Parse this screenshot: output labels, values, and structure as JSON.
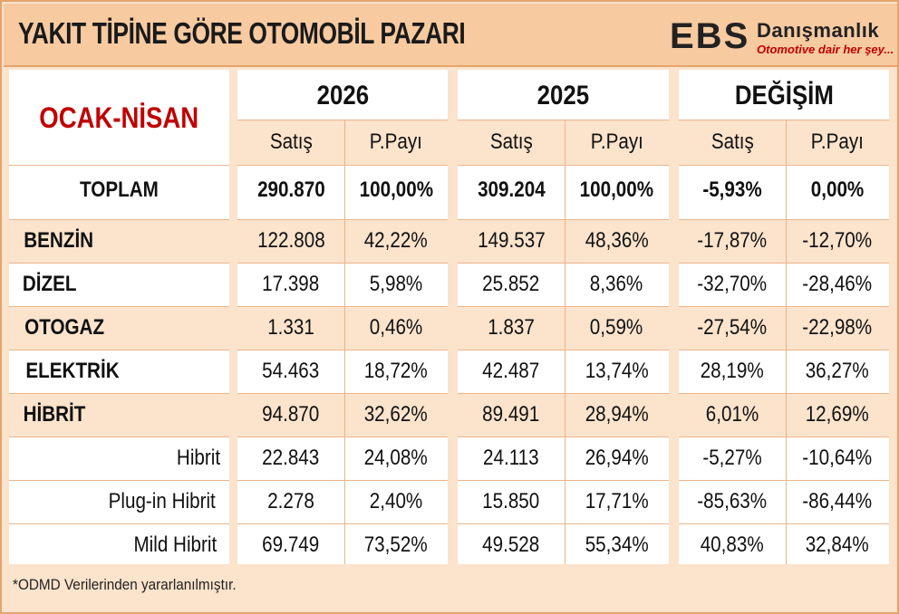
{
  "header": {
    "title": "YAKIT TİPİNE GÖRE OTOMOBİL PAZARI",
    "logo_mark": "EBS",
    "logo_name": "Danışmanlık",
    "logo_tagline": "Otomotive dair her şey..."
  },
  "table": {
    "period": "OCAK-NİSAN",
    "groups": [
      "2026",
      "2025",
      "DEĞİŞİM"
    ],
    "subheaders": [
      "Satış",
      "P.Payı",
      "Satış",
      "P.Payı",
      "Satış",
      "P.Payı"
    ],
    "rows": [
      {
        "label": "TOPLAM",
        "cells": [
          "290.870",
          "100,00%",
          "309.204",
          "100,00%",
          "-5,93%",
          "0,00%"
        ]
      },
      {
        "label": "BENZİN",
        "cells": [
          "122.808",
          "42,22%",
          "149.537",
          "48,36%",
          "-17,87%",
          "-12,70%"
        ]
      },
      {
        "label": "DİZEL",
        "cells": [
          "17.398",
          "5,98%",
          "25.852",
          "8,36%",
          "-32,70%",
          "-28,46%"
        ]
      },
      {
        "label": "OTOGAZ",
        "cells": [
          "1.331",
          "0,46%",
          "1.837",
          "0,59%",
          "-27,54%",
          "-22,98%"
        ]
      },
      {
        "label": "ELEKTRİK",
        "cells": [
          "54.463",
          "18,72%",
          "42.487",
          "13,74%",
          "28,19%",
          "36,27%"
        ]
      },
      {
        "label": "HİBRİT",
        "cells": [
          "94.870",
          "32,62%",
          "89.491",
          "28,94%",
          "6,01%",
          "12,69%"
        ]
      },
      {
        "label": "Hibrit",
        "cells": [
          "22.843",
          "24,08%",
          "24.113",
          "26,94%",
          "-5,27%",
          "-10,64%"
        ]
      },
      {
        "label": "Plug-in Hibrit",
        "cells": [
          "2.278",
          "2,40%",
          "15.850",
          "17,71%",
          "-85,63%",
          "-86,44%"
        ]
      },
      {
        "label": "Mild Hibrit",
        "cells": [
          "69.749",
          "73,52%",
          "49.528",
          "55,34%",
          "40,83%",
          "32,84%"
        ]
      }
    ]
  },
  "footnote": "*ODMD Verilerinden yararlanılmıştır."
}
